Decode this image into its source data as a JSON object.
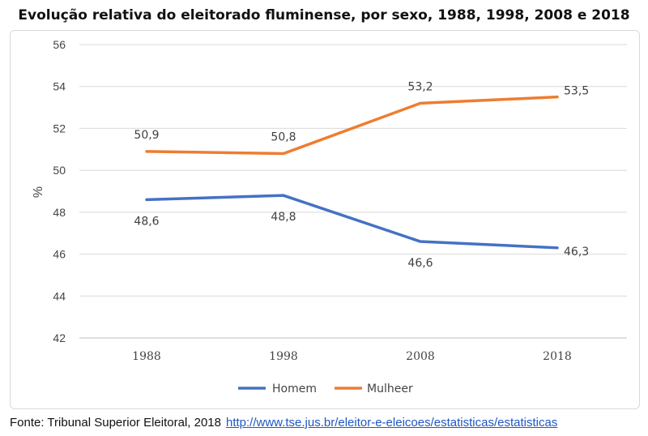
{
  "chart_data": {
    "type": "line",
    "title": "Evolução relativa do eleitorado fluminense, por sexo, 1988, 1998, 2008 e 2018",
    "xlabel": "",
    "ylabel": "%",
    "categories": [
      "1988",
      "1998",
      "2008",
      "2018"
    ],
    "ylim": [
      42,
      56
    ],
    "yticks": [
      42,
      44,
      46,
      48,
      50,
      52,
      54,
      56
    ],
    "grid": true,
    "legend_position": "bottom",
    "series": [
      {
        "name": "Homem",
        "color": "#4472c4",
        "values": [
          48.6,
          48.8,
          46.6,
          46.3
        ],
        "labels": [
          "48,6",
          "48,8",
          "46,6",
          "46,3"
        ]
      },
      {
        "name": "Mulheer",
        "color": "#ed7d31",
        "values": [
          50.9,
          50.8,
          53.2,
          53.5
        ],
        "labels": [
          "50,9",
          "50,8",
          "53,2",
          "53,5"
        ]
      }
    ]
  },
  "source": {
    "text": "Fonte: Tribunal Superior Eleitoral, 2018",
    "link": "http://www.tse.jus.br/eleitor-e-eleicoes/estatisticas/estatisticas"
  }
}
